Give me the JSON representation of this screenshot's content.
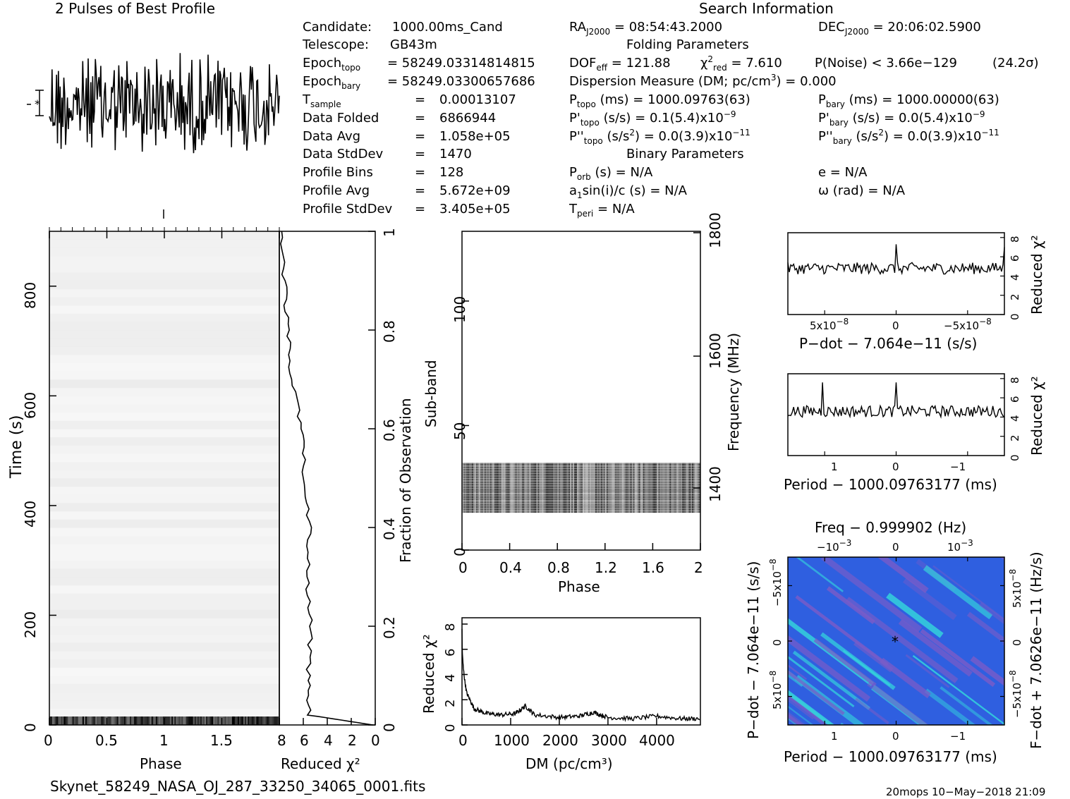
{
  "header": {
    "profile_title": "2 Pulses of Best Profile",
    "search_title": "Search Information",
    "folding_title": "Folding Parameters",
    "binary_title": "Binary Parameters"
  },
  "info_left": [
    {
      "label": "Candidate:",
      "value": "1000.00ms_Cand"
    },
    {
      "label": "Telescope:",
      "value": "GB43m"
    },
    {
      "label": "Epoch",
      "sub": "topo",
      "value": "= 58249.03314814815"
    },
    {
      "label": "Epoch",
      "sub": "bary",
      "value": "= 58249.03300657686"
    },
    {
      "label": "T",
      "sub": "sample",
      "value": "0.00013107"
    },
    {
      "label": "Data Folded",
      "value": "6866944"
    },
    {
      "label": "Data Avg",
      "value": "1.058e+05"
    },
    {
      "label": "Data StdDev",
      "value": "1470"
    },
    {
      "label": "Profile Bins",
      "value": "128"
    },
    {
      "label": "Profile Avg",
      "value": "5.672e+09"
    },
    {
      "label": "Profile StdDev",
      "value": "3.405e+05"
    }
  ],
  "search": {
    "ra_label": "RA",
    "ra_sub": "J2000",
    "ra_value": "= 08:54:43.2000",
    "dec_label": "DEC",
    "dec_sub": "J2000",
    "dec_value": "= 20:06:02.5900",
    "dof_label": "DOF",
    "dof_sub": "eff",
    "dof_value": "= 121.88",
    "chi_label": "χ",
    "chi_sup": "2",
    "chi_sub": "red",
    "chi_value": "= 7.610",
    "pnoise": "P(Noise) < 3.66e−129",
    "sigma": "(24.2σ)",
    "dm_line_a": "Dispersion Measure (DM; pc/cm",
    "dm_line_sup": "3",
    "dm_line_b": ") = 0.000",
    "ptopo_value": "(ms) = 1000.09763(63)",
    "pbary_value": "(ms) = 1000.00000(63)",
    "pdtopo_value": "(s/s) = 0.1(5.4)x10",
    "pdtopo_exp": "−9",
    "pdbary_value": "(s/s) = 0.0(5.4)x10",
    "pdbary_exp": "−9",
    "pddtopo_value": "(s/s",
    "pddtopo_value2": ") = 0.0(3.9)x10",
    "pddtopo_exp": "−11",
    "pddbary_value2": ") = 0.0(3.9)x10",
    "pddbary_exp": "−11",
    "porb": "(s) = N/A",
    "ecc": "e = N/A",
    "a1": "a",
    "a1_rest": "sin(i)/c (s) = N/A",
    "omega": "ω (rad) = N/A",
    "tperi_rest": "= N/A"
  },
  "footer": {
    "filename": "Skynet_58249_NASA_OJ_287_33250_34065_0001.fits",
    "stamp": "20mops 10−May−2018 21:09"
  },
  "colors": {
    "ink": "#000000",
    "grey_map": "#f2f2f2",
    "ppdot_base": "#2f5fe0",
    "ppdot_high": "#34d6dc",
    "ppdot_low": "#7a5cc8"
  },
  "chart_data": [
    {
      "id": "pulse-profile",
      "type": "line",
      "title": "2 Pulses of Best Profile",
      "x": {
        "label": "Phase",
        "range": [
          0,
          2
        ]
      },
      "note": "noisy profile, no significant pulse",
      "samples": 256
    },
    {
      "id": "time-phase",
      "type": "heatmap",
      "xlabel": "Phase",
      "ylabel": "Time (s)",
      "xlim": [
        0,
        2
      ],
      "ylim": [
        0,
        900
      ],
      "xticks": [
        "0",
        "0.5",
        "1",
        "1.5"
      ],
      "yticks": [
        "0",
        "200",
        "400",
        "600",
        "800"
      ]
    },
    {
      "id": "time-chi2",
      "type": "line",
      "xlabel": "Reduced χ²",
      "ylabel": "Fraction of Observation",
      "xlim": [
        8,
        0
      ],
      "ylim": [
        0,
        1
      ],
      "xticks": [
        "8",
        "6",
        "4",
        "2",
        "0"
      ],
      "yticks": [
        "0",
        "0.2",
        "0.4",
        "0.6",
        "0.8",
        "1"
      ],
      "points": [
        [
          0.2,
          0.0
        ],
        [
          5.5,
          0.02
        ],
        [
          5.6,
          0.1
        ],
        [
          5.4,
          0.2
        ],
        [
          5.7,
          0.3
        ],
        [
          5.5,
          0.4
        ],
        [
          5.9,
          0.5
        ],
        [
          6.2,
          0.6
        ],
        [
          7.0,
          0.7
        ],
        [
          7.3,
          0.8
        ],
        [
          7.6,
          0.9
        ],
        [
          7.8,
          1.0
        ]
      ]
    },
    {
      "id": "subband-phase",
      "type": "heatmap",
      "xlabel": "Phase",
      "ylabel": "Sub-band",
      "y2label": "Frequency (MHz)",
      "xlim": [
        0,
        2
      ],
      "ylim": [
        0,
        128
      ],
      "xticks": [
        "0",
        "0.4",
        "0.8",
        "1.2",
        "1.6",
        "2"
      ],
      "yticks": [
        "0",
        "50",
        "100"
      ],
      "y2ticks": [
        "1400",
        "1600",
        "1800"
      ],
      "band": [
        15,
        35
      ]
    },
    {
      "id": "dm-chi2",
      "type": "line",
      "xlabel": "DM (pc/cm³)",
      "ylabel": "Reduced χ²",
      "xlim": [
        0,
        4900
      ],
      "ylim": [
        0,
        8.5
      ],
      "xticks": [
        "0",
        "1000",
        "2000",
        "3000",
        "4000"
      ],
      "yticks": [
        "0",
        "2",
        "4",
        "6",
        "8"
      ],
      "points": [
        [
          0,
          7.6
        ],
        [
          100,
          2.5
        ],
        [
          250,
          1.3
        ],
        [
          500,
          0.9
        ],
        [
          800,
          0.8
        ],
        [
          1100,
          0.9
        ],
        [
          1300,
          1.5
        ],
        [
          1500,
          0.8
        ],
        [
          2000,
          0.6
        ],
        [
          2400,
          0.7
        ],
        [
          2700,
          1.0
        ],
        [
          3000,
          0.6
        ],
        [
          3500,
          0.5
        ],
        [
          4000,
          0.7
        ],
        [
          4500,
          0.5
        ],
        [
          4900,
          0.5
        ]
      ]
    },
    {
      "id": "pdot-chi2",
      "type": "line",
      "xlabel": "P−dot − 7.064e−11 (s/s)",
      "ylabel": "Reduced χ²",
      "xticks": [
        "5x10",
        "0",
        "−5x10"
      ],
      "xtick_exp": "−8",
      "yticks": [
        "0",
        "2",
        "4",
        "6",
        "8"
      ],
      "ylim": [
        0,
        8.5
      ],
      "baseline": 4.8,
      "peak": 7.3
    },
    {
      "id": "period-chi2",
      "type": "line",
      "xlabel": "Period − 1000.09763177 (ms)",
      "ylabel": "Reduced χ²",
      "xticks": [
        "1",
        "0",
        "−1"
      ],
      "yticks": [
        "0",
        "2",
        "4",
        "6",
        "8"
      ],
      "ylim": [
        0,
        8.5
      ],
      "baseline": 4.6,
      "peak": 7.6
    },
    {
      "id": "p-pdot",
      "type": "heatmap",
      "title": "Freq − 0.999902 (Hz)",
      "xlabel": "Period − 1000.09763177 (ms)",
      "ylabel": "P−dot − 7.064e−11 (s/s)",
      "y2label": "F−dot + 7.0626e−11 (Hz/s)",
      "xticks": [
        "1",
        "0",
        "−1"
      ],
      "top_ticks": [
        "−10",
        "0",
        "10"
      ],
      "top_exp": [
        "−3",
        "",
        "−3"
      ],
      "yticks": [
        "5x10",
        "0",
        "−5x10"
      ],
      "ytick_exp": "−8",
      "y2ticks": [
        "5x10",
        "0",
        "−5x10"
      ],
      "y2tick_exp": "−8"
    }
  ]
}
